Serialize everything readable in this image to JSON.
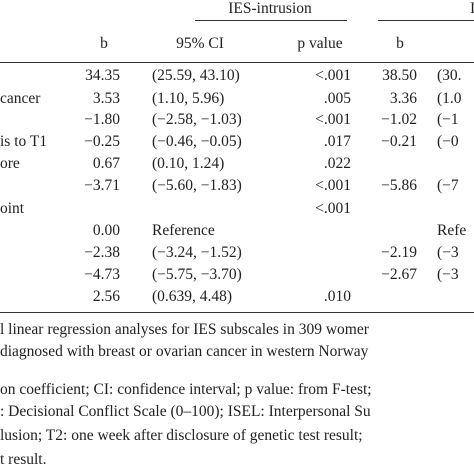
{
  "table": {
    "group_headers": [
      "IES-intrusion",
      "IES"
    ],
    "columns": [
      "b",
      "95% CI",
      "p value",
      "b"
    ],
    "rows": [
      [
        null,
        "34.35",
        "(25.59, 43.10)",
        "<.001",
        "38.50",
        "(30."
      ],
      [
        "cancer",
        "3.53",
        "(1.10, 5.96)",
        ".005",
        "3.36",
        "(1.0"
      ],
      [
        null,
        "−1.80",
        "(−2.58, −1.03)",
        "<.001",
        "−1.02",
        "(−1"
      ],
      [
        "is to T1",
        "−0.25",
        "(−0.46, −0.05)",
        ".017",
        "−0.21",
        "(−0"
      ],
      [
        "ore",
        "0.67",
        "(0.10, 1.24)",
        ".022",
        null,
        null
      ],
      [
        null,
        "−3.71",
        "(−5.60, −1.83)",
        "<.001",
        "−5.86",
        "(−7"
      ],
      [
        "oint",
        null,
        null,
        "<.001",
        null,
        null
      ],
      [
        null,
        "0.00",
        "Reference",
        null,
        null,
        "Refe"
      ],
      [
        null,
        "−2.38",
        "(−3.24, −1.52)",
        null,
        "−2.19",
        "(−3"
      ],
      [
        null,
        "−4.73",
        "(−5.75, −3.70)",
        null,
        "−2.67",
        "(−3"
      ],
      [
        null,
        "2.56",
        "(0.639, 4.48)",
        ".010",
        null,
        null
      ]
    ]
  },
  "footnote": {
    "lines": [
      "l linear regression analyses for IES subscales in 309 womer",
      "diagnosed with breast or ovarian cancer in western Norway",
      "on coefficient; CI: confidence interval; p value: from F-test;",
      ": Decisional Conflict Scale (0–100); ISEL: Interpersonal Su",
      "lusion; T2: one week after disclosure of genetic test result;",
      "t result."
    ]
  }
}
